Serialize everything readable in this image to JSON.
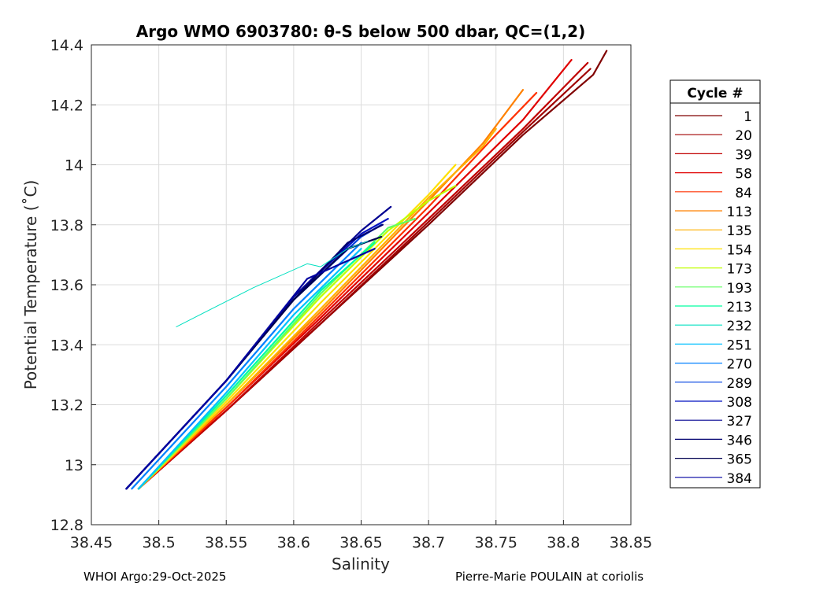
{
  "chart_data": {
    "type": "line",
    "title": "Argo WMO 6903780: θ-S below 500 dbar,  QC=(1,2)",
    "xlabel": "Salinity",
    "ylabel": "Potential Temperature (˚C)",
    "xlim": [
      38.45,
      38.85
    ],
    "ylim": [
      12.8,
      14.4
    ],
    "x_ticks": [
      38.45,
      38.5,
      38.55,
      38.6,
      38.65,
      38.7,
      38.75,
      38.8,
      38.85
    ],
    "y_ticks": [
      12.8,
      13,
      13.2,
      13.4,
      13.6,
      13.8,
      14,
      14.2,
      14.4
    ],
    "x_tick_labels": [
      "38.45",
      "38.5",
      "38.55",
      "38.6",
      "38.65",
      "38.7",
      "38.75",
      "38.8",
      "38.85"
    ],
    "y_tick_labels": [
      "12.8",
      "13",
      "13.2",
      "13.4",
      "13.6",
      "13.8",
      "14",
      "14.2",
      "14.4"
    ],
    "grid": true,
    "legend_title": "Cycle #",
    "legend_position": "right-outside",
    "series": [
      {
        "name": "1",
        "color": "#800000",
        "x": [
          38.485,
          38.55,
          38.62,
          38.7,
          38.77,
          38.822,
          38.832
        ],
        "y": [
          12.92,
          13.18,
          13.47,
          13.8,
          14.1,
          14.3,
          14.38
        ]
      },
      {
        "name": "20",
        "color": "#a00000",
        "x": [
          38.485,
          38.55,
          38.62,
          38.7,
          38.77,
          38.82
        ],
        "y": [
          12.92,
          13.18,
          13.47,
          13.81,
          14.11,
          14.32
        ]
      },
      {
        "name": "39",
        "color": "#c00000",
        "x": [
          38.485,
          38.55,
          38.62,
          38.7,
          38.77,
          38.818
        ],
        "y": [
          12.92,
          13.18,
          13.48,
          13.82,
          14.12,
          14.34
        ]
      },
      {
        "name": "58",
        "color": "#e00000",
        "x": [
          38.485,
          38.55,
          38.62,
          38.7,
          38.77,
          38.806
        ],
        "y": [
          12.92,
          13.19,
          13.49,
          13.84,
          14.15,
          14.35
        ]
      },
      {
        "name": "84",
        "color": "#ff3000",
        "x": [
          38.485,
          38.55,
          38.62,
          38.7,
          38.75,
          38.78
        ],
        "y": [
          12.92,
          13.19,
          13.5,
          13.86,
          14.1,
          14.24
        ]
      },
      {
        "name": "113",
        "color": "#ff8000",
        "x": [
          38.485,
          38.55,
          38.62,
          38.7,
          38.74,
          38.77
        ],
        "y": [
          12.92,
          13.2,
          13.51,
          13.88,
          14.07,
          14.25
        ]
      },
      {
        "name": "135",
        "color": "#ffb000",
        "x": [
          38.485,
          38.55,
          38.62,
          38.7,
          38.74,
          38.75
        ],
        "y": [
          12.92,
          13.2,
          13.52,
          13.89,
          14.06,
          14.12
        ]
      },
      {
        "name": "154",
        "color": "#ffe000",
        "x": [
          38.485,
          38.55,
          38.62,
          38.7,
          38.72
        ],
        "y": [
          12.92,
          13.21,
          13.54,
          13.9,
          14.0
        ]
      },
      {
        "name": "173",
        "color": "#c0ff00",
        "x": [
          38.485,
          38.55,
          38.62,
          38.67,
          38.7,
          38.72
        ],
        "y": [
          12.92,
          13.22,
          13.56,
          13.78,
          13.88,
          13.93
        ]
      },
      {
        "name": "193",
        "color": "#60ff60",
        "x": [
          38.485,
          38.55,
          38.62,
          38.67,
          38.69
        ],
        "y": [
          12.92,
          13.22,
          13.57,
          13.79,
          13.82
        ]
      },
      {
        "name": "213",
        "color": "#00ffa0",
        "x": [
          38.485,
          38.55,
          38.62,
          38.66
        ],
        "y": [
          12.92,
          13.23,
          13.58,
          13.74
        ]
      },
      {
        "name": "232",
        "color": "#00e0c0",
        "x": [
          38.513,
          38.57,
          38.61,
          38.62,
          38.64,
          38.655
        ],
        "y": [
          13.46,
          13.59,
          13.67,
          13.66,
          13.72,
          13.745
        ]
      },
      {
        "name": "251",
        "color": "#00c0ff",
        "x": [
          38.485,
          38.55,
          38.6,
          38.65
        ],
        "y": [
          12.92,
          13.24,
          13.5,
          13.72
        ]
      },
      {
        "name": "270",
        "color": "#0080ff",
        "x": [
          38.48,
          38.55,
          38.6,
          38.65
        ],
        "y": [
          12.92,
          13.26,
          13.52,
          13.74
        ]
      },
      {
        "name": "289",
        "color": "#0040e0",
        "x": [
          38.476,
          38.55,
          38.6,
          38.65,
          38.665
        ],
        "y": [
          12.92,
          13.28,
          13.55,
          13.76,
          13.8
        ]
      },
      {
        "name": "308",
        "color": "#0010c0",
        "x": [
          38.476,
          38.55,
          38.6,
          38.65,
          38.67
        ],
        "y": [
          12.92,
          13.28,
          13.56,
          13.77,
          13.82
        ]
      },
      {
        "name": "327",
        "color": "#000090",
        "x": [
          38.476,
          38.55,
          38.6,
          38.65,
          38.672
        ],
        "y": [
          12.92,
          13.28,
          13.56,
          13.78,
          13.86
        ]
      },
      {
        "name": "346",
        "color": "#000070",
        "x": [
          38.476,
          38.55,
          38.6,
          38.64,
          38.666
        ],
        "y": [
          12.92,
          13.28,
          13.55,
          13.74,
          13.8
        ]
      },
      {
        "name": "365",
        "color": "#000050",
        "x": [
          38.476,
          38.55,
          38.6,
          38.64,
          38.665
        ],
        "y": [
          12.92,
          13.28,
          13.55,
          13.72,
          13.76
        ]
      },
      {
        "name": "384",
        "color": "#0000a0",
        "x": [
          38.476,
          38.55,
          38.61,
          38.64,
          38.66
        ],
        "y": [
          12.92,
          13.28,
          13.62,
          13.68,
          13.72
        ]
      }
    ]
  },
  "footer": {
    "left": "WHOI Argo:29-Oct-2025",
    "right": "Pierre-Marie POULAIN at coriolis"
  }
}
